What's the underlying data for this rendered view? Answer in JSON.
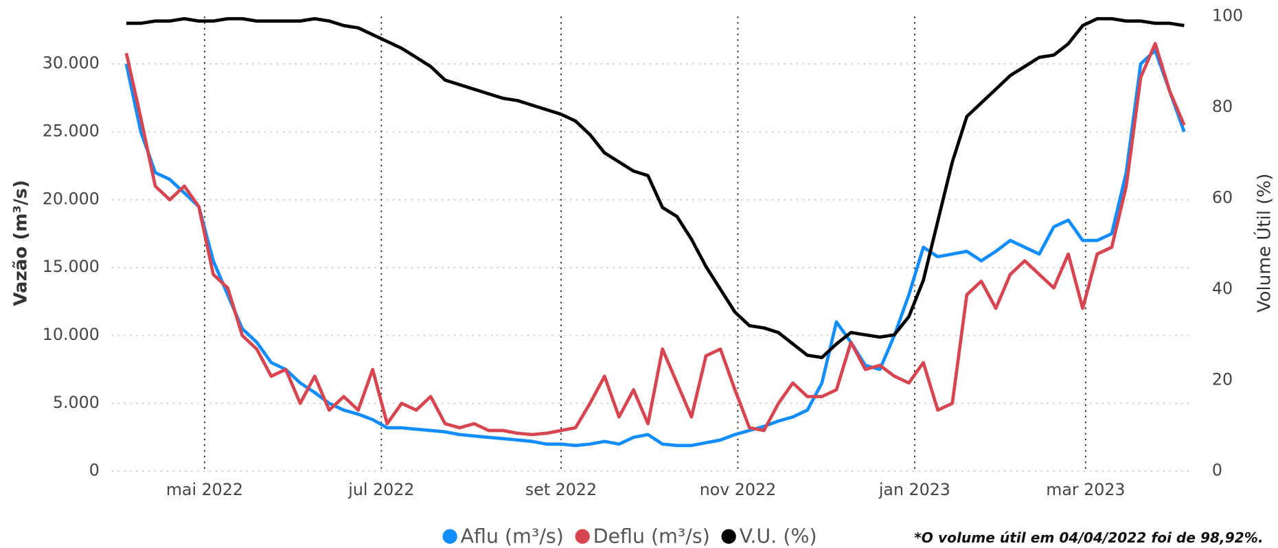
{
  "chart_data": {
    "type": "line",
    "y_title": "Vazão (m³/s)",
    "y2_title": "Volume Útil (%)",
    "note": "*O volume útil em 04/04/2022 foi de 98,92%.",
    "x": [
      3,
      8,
      13,
      18,
      23,
      28,
      33,
      38,
      43,
      48,
      53,
      58,
      63,
      68,
      73,
      78,
      83,
      88,
      93,
      98,
      103,
      108,
      113,
      118,
      123,
      128,
      133,
      138,
      143,
      148,
      153,
      158,
      163,
      168,
      173,
      178,
      183,
      188,
      193,
      198,
      203,
      208,
      213,
      218,
      223,
      228,
      233,
      238,
      243,
      248,
      253,
      258,
      263,
      268,
      273,
      278,
      283,
      288,
      293,
      298,
      303,
      308,
      313,
      318,
      323,
      328,
      333,
      338,
      343,
      348,
      353,
      358,
      363,
      368
    ],
    "xlim": [
      -2,
      370
    ],
    "xticks": [
      {
        "value": 30,
        "label": "mai 2022"
      },
      {
        "value": 91,
        "label": "jul 2022"
      },
      {
        "value": 153,
        "label": "set 2022"
      },
      {
        "value": 214,
        "label": "nov 2022"
      },
      {
        "value": 275,
        "label": "jan 2023"
      },
      {
        "value": 334,
        "label": "mar 2023"
      }
    ],
    "ylim": [
      0,
      33500
    ],
    "yticks": [
      0,
      {
        "value": 5000,
        "label": "5.000"
      },
      {
        "value": 10000,
        "label": "10.000"
      },
      {
        "value": 15000,
        "label": "15.000"
      },
      {
        "value": 20000,
        "label": "20.000"
      },
      {
        "value": 25000,
        "label": "25.000"
      },
      {
        "value": 30000,
        "label": "30.000"
      }
    ],
    "y2lim": [
      0,
      100
    ],
    "y2ticks": [
      0,
      20,
      40,
      60,
      80,
      100
    ],
    "grid": true,
    "series": [
      {
        "name": "Aflu (m³/s)",
        "color": "#118dff",
        "values": [
          30000,
          25000,
          22000,
          21500,
          20500,
          19500,
          15500,
          13000,
          10500,
          9500,
          8000,
          7500,
          6500,
          5800,
          5000,
          4500,
          4200,
          3800,
          3200,
          3200,
          3100,
          3000,
          2900,
          2700,
          2600,
          2500,
          2400,
          2300,
          2200,
          2000,
          2000,
          1900,
          2000,
          2200,
          2000,
          2500,
          2700,
          2000,
          1900,
          1900,
          2100,
          2300,
          2700,
          3000,
          3300,
          3700,
          4000,
          4500,
          6500,
          11000,
          9500,
          7800,
          7500,
          10000,
          13000,
          16500,
          15800,
          16000,
          16200,
          15500,
          16200,
          17000,
          16500,
          16000,
          18000,
          18500,
          17000,
          17000,
          17500,
          22000,
          30000,
          31000,
          28000,
          25000
        ]
      },
      {
        "name": "Deflu (m³/s)",
        "color": "#d64550",
        "values": [
          30800,
          26000,
          21000,
          20000,
          21000,
          19500,
          14500,
          13500,
          10000,
          9000,
          7000,
          7500,
          5000,
          7000,
          4500,
          5500,
          4500,
          7500,
          3500,
          5000,
          4500,
          5500,
          3500,
          3200,
          3500,
          3000,
          3000,
          2800,
          2700,
          2800,
          3000,
          3200,
          5000,
          7000,
          4000,
          6000,
          3500,
          9000,
          6500,
          4000,
          8500,
          9000,
          6000,
          3200,
          3000,
          5000,
          6500,
          5500,
          5500,
          6000,
          9500,
          7500,
          7800,
          7000,
          6500,
          8000,
          4500,
          5000,
          13000,
          14000,
          12000,
          14500,
          15500,
          14500,
          13500,
          16000,
          12000,
          16000,
          16500,
          21000,
          29000,
          31500,
          28000,
          25500
        ]
      },
      {
        "name": "V.U. (%)",
        "color": "#000000",
        "axis": "y2",
        "values": [
          98.5,
          98.5,
          99,
          99,
          99.5,
          99,
          99,
          99.5,
          99.5,
          99,
          99,
          99,
          99,
          99.5,
          99,
          98,
          97.5,
          96,
          94.5,
          93,
          91,
          89,
          86,
          85,
          84,
          83,
          82,
          81.5,
          80.5,
          79.5,
          78.5,
          77,
          74,
          70,
          68,
          66,
          65,
          58,
          56,
          51,
          45,
          40,
          35,
          32,
          31.5,
          30.5,
          28,
          25.5,
          25,
          28,
          30.5,
          30,
          29.5,
          30,
          34,
          42,
          55,
          68,
          78,
          81,
          84,
          87,
          89,
          91,
          91.5,
          94,
          98,
          99.5,
          99.5,
          99,
          99,
          98.5,
          98.5,
          98
        ]
      }
    ]
  }
}
